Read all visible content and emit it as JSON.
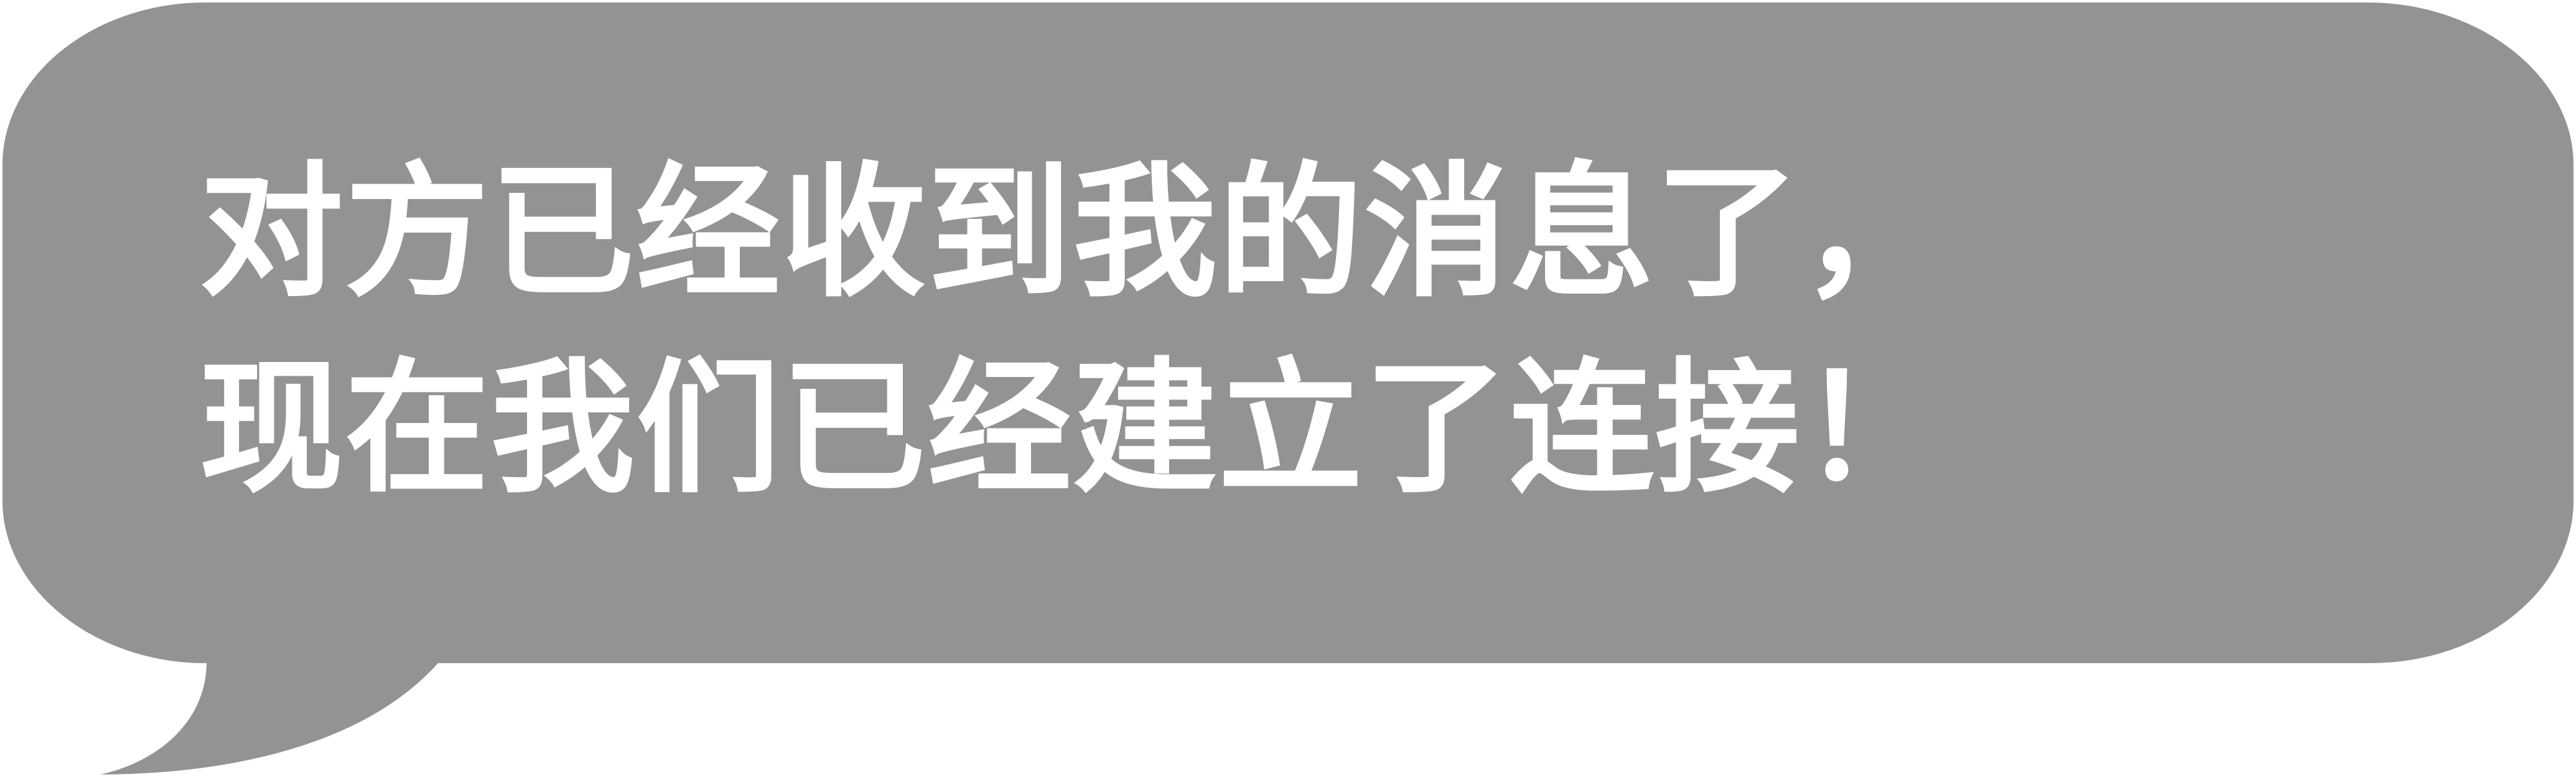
{
  "bubble": {
    "fill_color": "#939393",
    "stroke_color": "#ffffff",
    "text_color": "#ffffff",
    "lines": [
      "对方已经收到我的消息了，",
      "现在我们已经建立了连接！"
    ]
  }
}
